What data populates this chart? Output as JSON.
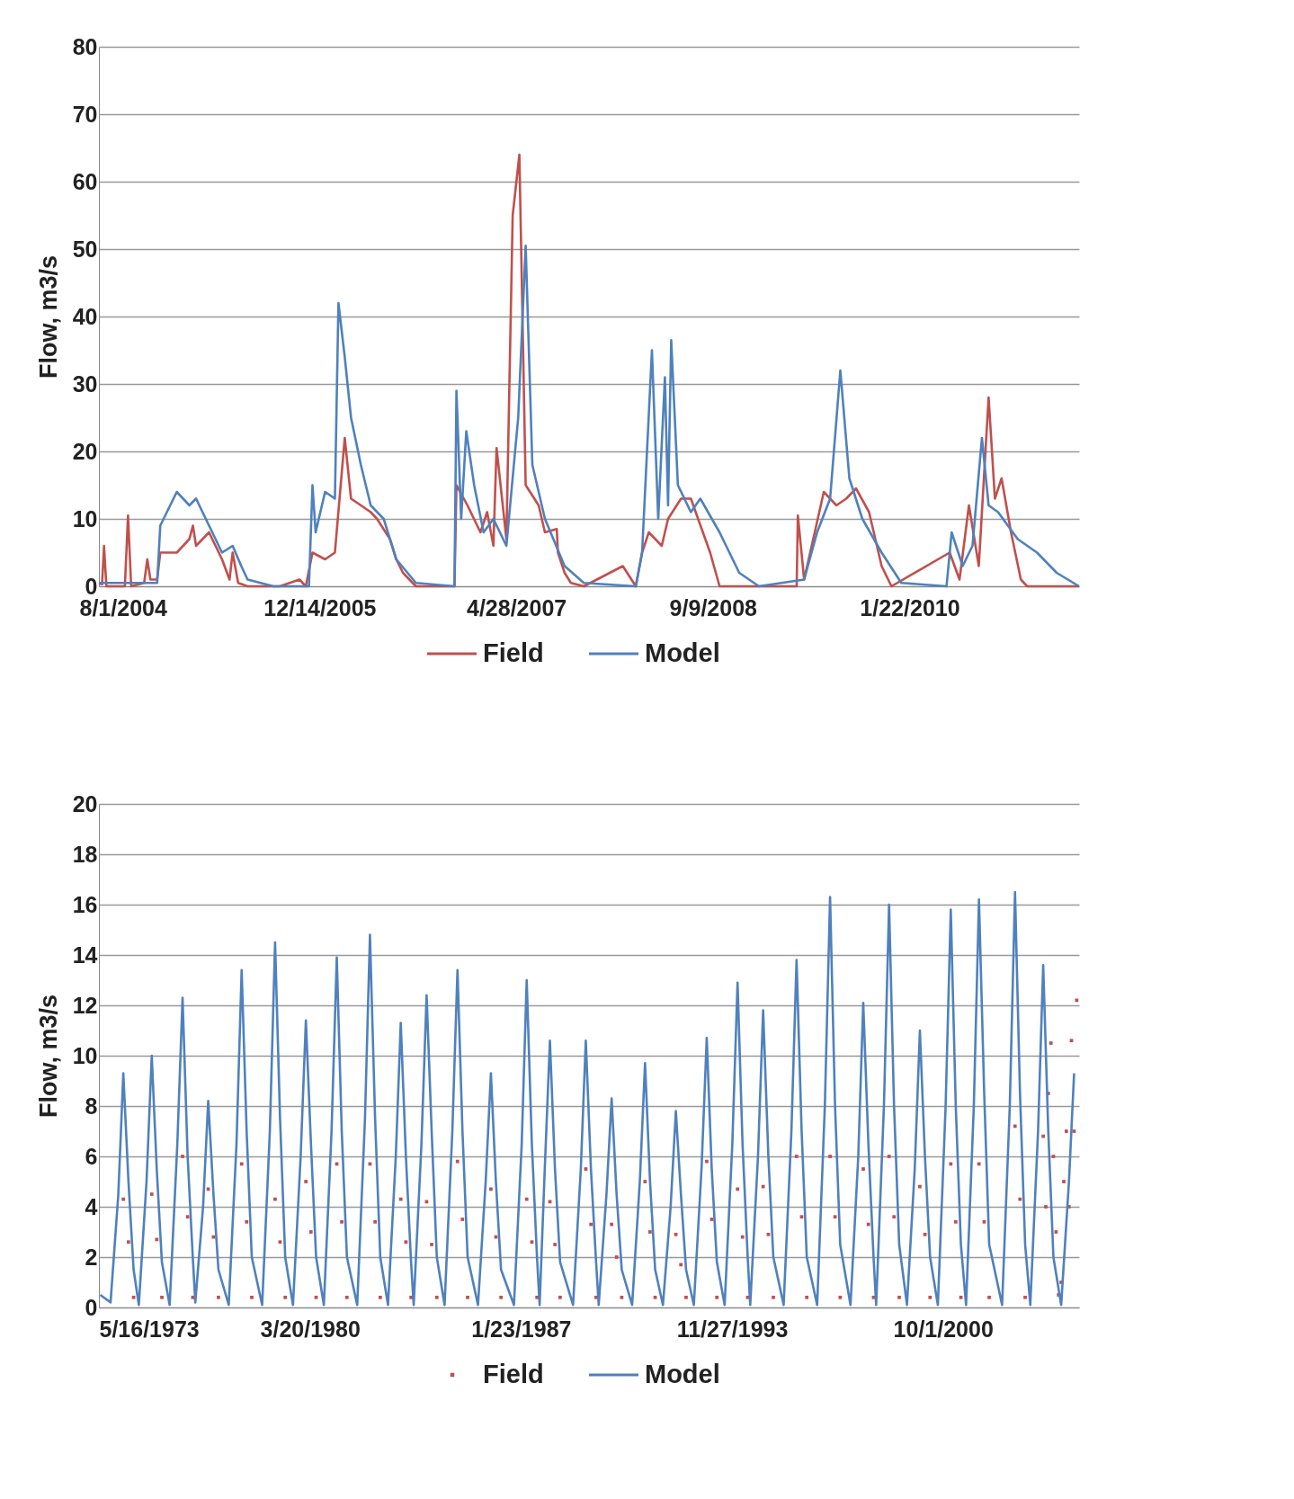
{
  "chart_data": [
    {
      "type": "line",
      "ylabel": "Flow, m3/s",
      "xlim": [
        "2004-06-01",
        "2011-03-29"
      ],
      "xticks": [
        {
          "value": "2004-08-01",
          "label": "8/1/2004"
        },
        {
          "value": "2005-12-14",
          "label": "12/14/2005"
        },
        {
          "value": "2007-04-28",
          "label": "4/28/2007"
        },
        {
          "value": "2008-09-09",
          "label": "9/9/2008"
        },
        {
          "value": "2010-01-22",
          "label": "1/22/2010"
        }
      ],
      "ylim": [
        0,
        80
      ],
      "yticks": [
        0,
        10,
        20,
        30,
        40,
        50,
        60,
        70,
        80
      ],
      "grid": "y",
      "legend": "bottom",
      "series": [
        {
          "name": "Field",
          "color": "#c0504d",
          "x": [
            "2004-06-01",
            "2004-06-09",
            "2004-06-14",
            "2004-06-20",
            "2004-08-06",
            "2004-08-14",
            "2004-08-22",
            "2004-09-24",
            "2004-10-02",
            "2004-10-10",
            "2004-10-27",
            "2004-11-04",
            "2004-12-16",
            "2005-01-17",
            "2005-01-26",
            "2005-02-03",
            "2005-03-08",
            "2005-04-10",
            "2005-04-29",
            "2005-05-07",
            "2005-05-21",
            "2005-06-14",
            "2005-09-04",
            "2005-10-24",
            "2005-11-09",
            "2005-11-26",
            "2005-12-28",
            "2006-01-22",
            "2006-02-16",
            "2006-03-04",
            "2006-03-29",
            "2006-04-23",
            "2006-05-09",
            "2006-06-11",
            "2006-06-27",
            "2006-07-14",
            "2006-08-16",
            "2006-11-22",
            "2006-11-27",
            "2006-12-25",
            "2007-01-27",
            "2007-02-13",
            "2007-03-01",
            "2007-03-09",
            "2007-04-03",
            "2007-04-19",
            "2007-05-06",
            "2007-05-22",
            "2007-06-24",
            "2007-07-10",
            "2007-08-09",
            "2007-08-12",
            "2007-08-29",
            "2007-09-14",
            "2007-10-17",
            "2008-01-24",
            "2008-02-26",
            "2008-03-13",
            "2008-03-30",
            "2008-05-02",
            "2008-05-18",
            "2008-06-20",
            "2008-07-15",
            "2008-09-02",
            "2008-09-26",
            "2009-04-10",
            "2009-04-13",
            "2009-04-29",
            "2009-06-18",
            "2009-07-20",
            "2009-08-14",
            "2009-09-08",
            "2009-10-11",
            "2009-11-12",
            "2009-12-07",
            "2010-05-04",
            "2010-05-29",
            "2010-06-22",
            "2010-07-17",
            "2010-08-11",
            "2010-08-27",
            "2010-09-13",
            "2010-10-07",
            "2010-11-01",
            "2010-11-17",
            "2011-03-29"
          ],
          "values": [
            0.5,
            0.3,
            6,
            0,
            0,
            10.5,
            0,
            0.5,
            4,
            1,
            1,
            5,
            5,
            7,
            9,
            6,
            8,
            4,
            1,
            5,
            0.5,
            0,
            0,
            1,
            0,
            5,
            4,
            5,
            22,
            13,
            12,
            11,
            10,
            7,
            4,
            2,
            0,
            0,
            15,
            12,
            8,
            11,
            6,
            20.5,
            7,
            55,
            64,
            15,
            12,
            8,
            8.5,
            5,
            2,
            0.5,
            0,
            3,
            0,
            5,
            8,
            6,
            10,
            13,
            13,
            5,
            0,
            0,
            10.5,
            1,
            14,
            12,
            13,
            14.5,
            11,
            3,
            0,
            5,
            1,
            12,
            3,
            28,
            13,
            16,
            8,
            1,
            0,
            0
          ]
        },
        {
          "name": "Model",
          "color": "#4f81bd",
          "x": [
            "2004-06-01",
            "2004-10-27",
            "2004-11-04",
            "2004-12-16",
            "2005-01-17",
            "2005-02-03",
            "2005-03-08",
            "2005-04-10",
            "2005-05-07",
            "2005-05-29",
            "2005-06-14",
            "2005-08-19",
            "2005-11-17",
            "2005-11-26",
            "2005-12-04",
            "2005-12-28",
            "2006-01-22",
            "2006-01-31",
            "2006-02-16",
            "2006-03-04",
            "2006-03-29",
            "2006-04-23",
            "2006-05-26",
            "2006-06-27",
            "2006-08-16",
            "2006-11-22",
            "2006-11-27",
            "2006-12-09",
            "2006-12-22",
            "2007-01-11",
            "2007-02-04",
            "2007-03-01",
            "2007-04-03",
            "2007-05-03",
            "2007-05-22",
            "2007-06-08",
            "2007-07-10",
            "2007-08-29",
            "2007-10-17",
            "2008-02-26",
            "2008-03-13",
            "2008-04-07",
            "2008-04-23",
            "2008-05-10",
            "2008-05-18",
            "2008-05-26",
            "2008-06-12",
            "2008-07-15",
            "2008-08-08",
            "2008-09-26",
            "2008-11-15",
            "2009-01-04",
            "2009-04-29",
            "2009-06-01",
            "2009-07-04",
            "2009-07-30",
            "2009-08-22",
            "2009-09-24",
            "2009-11-12",
            "2010-01-01",
            "2010-04-26",
            "2010-05-09",
            "2010-06-06",
            "2010-07-01",
            "2010-07-25",
            "2010-08-11",
            "2010-09-04",
            "2010-10-24",
            "2010-12-12",
            "2011-01-31",
            "2011-03-29"
          ],
          "values": [
            0.5,
            0.5,
            9,
            14,
            12,
            13,
            9,
            5,
            6,
            3,
            1,
            0,
            0,
            15,
            8,
            14,
            13,
            42,
            34,
            25,
            18,
            12,
            10,
            4,
            0.5,
            0,
            29,
            10,
            23,
            15,
            8,
            10,
            6,
            25,
            50.5,
            18,
            10,
            3,
            0.5,
            0,
            5,
            35,
            10,
            31,
            12,
            36.5,
            15,
            11,
            13,
            8,
            2,
            0,
            1,
            8,
            13,
            32,
            16,
            10,
            5,
            0.5,
            0,
            8,
            3,
            6,
            22,
            12,
            11,
            7,
            5,
            2,
            0
          ]
        }
      ]
    },
    {
      "type": "line",
      "ylabel": "Flow, m3/s",
      "xlim": [
        "1973-05-16",
        "2005-03-01"
      ],
      "xticks": [
        {
          "value": "1973-05-16",
          "label": "5/16/1973"
        },
        {
          "value": "1980-03-20",
          "label": "3/20/1980"
        },
        {
          "value": "1987-01-23",
          "label": "1/23/1987"
        },
        {
          "value": "1993-11-27",
          "label": "11/27/1993"
        },
        {
          "value": "2000-10-01",
          "label": "10/1/2000"
        }
      ],
      "ylim": [
        0,
        20
      ],
      "yticks": [
        0,
        2,
        4,
        6,
        8,
        10,
        12,
        14,
        16,
        18,
        20
      ],
      "grid": "y",
      "legend": "bottom",
      "series": [
        {
          "name": "Field",
          "type": "scatter",
          "marker": "square",
          "color": "#c0504d",
          "x": [
            "1974-03",
            "1974-05",
            "1974-07",
            "1975-02",
            "1975-04",
            "1975-06",
            "1976-02",
            "1976-04",
            "1976-06",
            "1976-12",
            "1977-02",
            "1977-04",
            "1978-01",
            "1978-03",
            "1978-05",
            "1979-02",
            "1979-04",
            "1979-06",
            "1980-02",
            "1980-04",
            "1980-06",
            "1981-02",
            "1981-04",
            "1981-06",
            "1982-03",
            "1982-05",
            "1982-07",
            "1983-03",
            "1983-05",
            "1983-07",
            "1984-01",
            "1984-03",
            "1984-05",
            "1985-01",
            "1985-03",
            "1985-05",
            "1986-02",
            "1986-04",
            "1986-06",
            "1987-04",
            "1987-06",
            "1987-08",
            "1988-01",
            "1988-03",
            "1988-05",
            "1989-03",
            "1989-05",
            "1989-07",
            "1990-01",
            "1990-03",
            "1990-05",
            "1991-02",
            "1991-04",
            "1991-06",
            "1992-02",
            "1992-04",
            "1992-06",
            "1993-02",
            "1993-04",
            "1993-06",
            "1994-02",
            "1994-04",
            "1994-06",
            "1994-12",
            "1995-02",
            "1995-04",
            "1996-01",
            "1996-03",
            "1996-05",
            "1997-02",
            "1997-04",
            "1997-06",
            "1998-03",
            "1998-05",
            "1998-07",
            "1999-01",
            "1999-03",
            "1999-05",
            "2000-01",
            "2000-03",
            "2000-05",
            "2001-01",
            "2001-03",
            "2001-05",
            "2001-12",
            "2002-02",
            "2002-04",
            "2003-02",
            "2003-04",
            "2003-06",
            "2004-01",
            "2004-02",
            "2004-03",
            "2004-04",
            "2004-05",
            "2004-06",
            "2004-07",
            "2004-08",
            "2004-09",
            "2004-10",
            "2004-11",
            "2004-12",
            "2005-01",
            "2005-02"
          ],
          "values": [
            4.3,
            2.6,
            0.4,
            4.5,
            2.7,
            0.4,
            6.0,
            3.6,
            0.4,
            4.7,
            2.8,
            0.4,
            5.7,
            3.4,
            0.4,
            4.3,
            2.6,
            0.4,
            5.0,
            3.0,
            0.4,
            5.7,
            3.4,
            0.4,
            5.7,
            3.4,
            0.4,
            4.3,
            2.6,
            0.4,
            4.2,
            2.5,
            0.4,
            5.8,
            3.5,
            0.4,
            4.7,
            2.8,
            0.4,
            4.3,
            2.6,
            0.4,
            4.2,
            2.5,
            0.4,
            5.5,
            3.3,
            0.4,
            3.3,
            2.0,
            0.4,
            5.0,
            3.0,
            0.4,
            2.9,
            1.7,
            0.4,
            5.8,
            3.5,
            0.4,
            4.7,
            2.8,
            0.4,
            4.8,
            2.9,
            0.4,
            6.0,
            3.6,
            0.4,
            6.0,
            3.6,
            0.4,
            5.5,
            3.3,
            0.4,
            6.0,
            3.6,
            0.4,
            4.8,
            2.9,
            0.4,
            5.7,
            3.4,
            0.4,
            5.7,
            3.4,
            0.4,
            7.2,
            4.3,
            0.4,
            6.8,
            4.0,
            8.5,
            10.5,
            6.0,
            3.0,
            0.5,
            1.0,
            5.0,
            7.0,
            4.0,
            10.6,
            7.0,
            12.2
          ]
        },
        {
          "name": "Model",
          "color": "#4f81bd",
          "x": [
            "1973-06",
            "1973-10",
            "1974-01",
            "1974-03",
            "1974-05",
            "1974-07",
            "1974-09",
            "1974-12",
            "1975-02",
            "1975-04",
            "1975-06",
            "1975-09",
            "1975-12",
            "1976-02",
            "1976-04",
            "1976-06",
            "1976-07",
            "1976-10",
            "1976-12",
            "1977-02",
            "1977-04",
            "1977-08",
            "1977-11",
            "1978-01",
            "1978-03",
            "1978-05",
            "1978-09",
            "1978-12",
            "1979-02",
            "1979-04",
            "1979-06",
            "1979-09",
            "1979-12",
            "1980-02",
            "1980-04",
            "1980-06",
            "1980-09",
            "1980-12",
            "1981-02",
            "1981-04",
            "1981-06",
            "1981-10",
            "1982-01",
            "1982-03",
            "1982-05",
            "1982-07",
            "1982-10",
            "1983-01",
            "1983-03",
            "1983-05",
            "1983-07",
            "1983-08",
            "1983-11",
            "1984-01",
            "1984-03",
            "1984-05",
            "1984-08",
            "1984-11",
            "1985-01",
            "1985-03",
            "1985-05",
            "1985-09",
            "1985-12",
            "1986-02",
            "1986-04",
            "1986-06",
            "1986-11",
            "1987-02",
            "1987-04",
            "1987-06",
            "1987-08",
            "1987-09",
            "1987-11",
            "1988-01",
            "1988-03",
            "1988-05",
            "1988-10",
            "1989-01",
            "1989-03",
            "1989-05",
            "1989-07",
            "1989-08",
            "1989-11",
            "1990-01",
            "1990-03",
            "1990-05",
            "1990-09",
            "1990-12",
            "1991-02",
            "1991-04",
            "1991-06",
            "1991-09",
            "1991-12",
            "1992-02",
            "1992-04",
            "1992-06",
            "1992-09",
            "1992-12",
            "1993-02",
            "1993-04",
            "1993-06",
            "1993-09",
            "1993-12",
            "1994-02",
            "1994-04",
            "1994-06",
            "1994-07",
            "1994-10",
            "1994-12",
            "1995-02",
            "1995-04",
            "1995-08",
            "1995-11",
            "1996-01",
            "1996-03",
            "1996-05",
            "1996-09",
            "1996-12",
            "1997-02",
            "1997-04",
            "1997-06",
            "1997-10",
            "1998-01",
            "1998-03",
            "1998-05",
            "1998-07",
            "1998-08",
            "1998-11",
            "1999-01",
            "1999-03",
            "1999-05",
            "1999-08",
            "1999-11",
            "2000-01",
            "2000-03",
            "2000-05",
            "2000-08",
            "2000-11",
            "2001-01",
            "2001-03",
            "2001-05",
            "2001-07",
            "2001-10",
            "2001-12",
            "2002-02",
            "2002-04",
            "2002-09",
            "2002-12",
            "2003-02",
            "2003-04",
            "2003-06",
            "2003-08",
            "2003-11",
            "2004-01",
            "2004-03",
            "2004-05",
            "2004-08",
            "2004-11",
            "2005-01"
          ],
          "values": [
            0.5,
            0.2,
            4.5,
            9.3,
            5.0,
            1.5,
            0.1,
            5.0,
            10.0,
            5.5,
            1.8,
            0.1,
            6.5,
            12.3,
            6.0,
            2.0,
            0.2,
            4.0,
            8.2,
            4.5,
            1.5,
            0.1,
            6.5,
            13.4,
            7.0,
            2.0,
            0.1,
            7.0,
            14.5,
            7.5,
            2.0,
            0.1,
            6.0,
            11.4,
            6.5,
            2.0,
            0.1,
            7.0,
            13.9,
            7.0,
            2.0,
            0.1,
            7.5,
            14.8,
            7.5,
            2.0,
            0.1,
            6.0,
            11.3,
            6.0,
            1.8,
            0.1,
            6.5,
            12.4,
            7.0,
            2.0,
            0.1,
            7.0,
            13.4,
            7.0,
            2.0,
            0.1,
            5.0,
            9.3,
            5.0,
            1.5,
            0.1,
            6.5,
            13.0,
            6.5,
            2.0,
            0.1,
            5.5,
            10.6,
            5.5,
            1.8,
            0.1,
            5.5,
            10.6,
            5.5,
            1.8,
            0.1,
            4.5,
            8.3,
            4.5,
            1.5,
            0.1,
            5.0,
            9.7,
            5.0,
            1.5,
            0.1,
            4.0,
            7.8,
            4.5,
            1.5,
            0.1,
            5.5,
            10.7,
            5.5,
            1.8,
            0.1,
            6.5,
            12.9,
            6.5,
            2.0,
            0.1,
            6.0,
            11.8,
            6.0,
            2.0,
            0.1,
            7.0,
            13.8,
            7.0,
            2.0,
            0.1,
            8.0,
            16.3,
            8.0,
            2.5,
            0.1,
            6.0,
            12.1,
            6.5,
            2.0,
            0.1,
            8.0,
            16.0,
            8.0,
            2.5,
            0.1,
            5.5,
            11.0,
            6.0,
            2.0,
            0.1,
            8.0,
            15.8,
            8.0,
            2.5,
            0.1,
            8.0,
            16.2,
            8.5,
            2.5,
            0.1,
            8.0,
            16.5,
            8.5,
            2.5,
            0.1,
            7.0,
            13.6,
            7.0,
            2.0,
            0.1,
            5.0,
            9.3
          ]
        }
      ]
    }
  ]
}
